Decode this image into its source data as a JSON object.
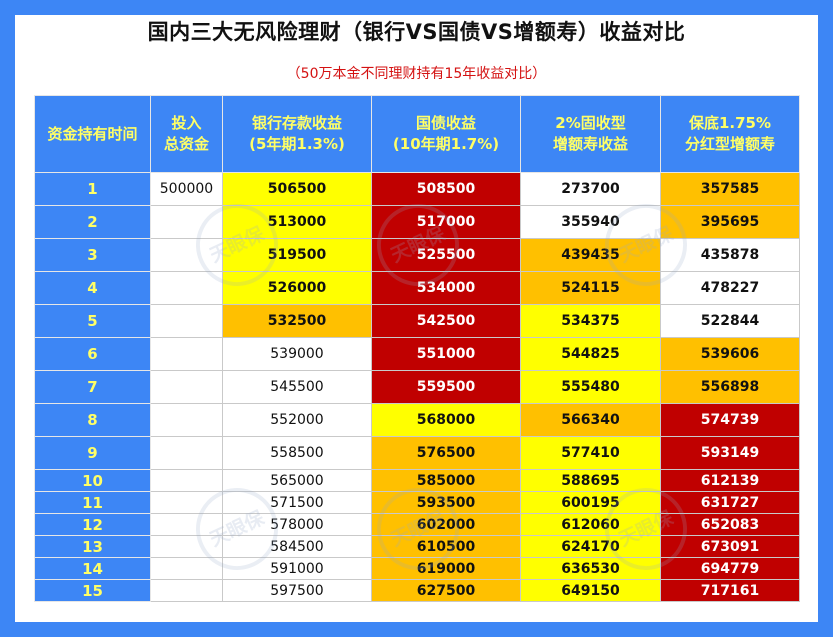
{
  "title": "国内三大无风险理财（银行VS国债VS增额寿）收益对比",
  "subtitle": "（50万本金不同理财持有15年收益对比）",
  "watermark_text": "天眼保",
  "headers": [
    {
      "line1": "资金持有时间",
      "line2": ""
    },
    {
      "line1": "投入",
      "line2": "总资金"
    },
    {
      "line1": "银行存款收益",
      "line2": "(5年期1.3%)"
    },
    {
      "line1": "国债收益",
      "line2": "(10年期1.7%)"
    },
    {
      "line1": "2%固收型",
      "line2": "增额寿收益"
    },
    {
      "line1": "保底1.75%",
      "line2": "分红型增额寿"
    }
  ],
  "colors": {
    "frame": "#3d86f5",
    "header_bg": "#3d86f5",
    "header_text": "#ffff66",
    "yellow": "#ffff00",
    "orange": "#ffc000",
    "red": "#c00000",
    "subtitle": "#d41212"
  },
  "rows": [
    {
      "year": "1",
      "invested": "500000",
      "bank": "506500",
      "bond": "508500",
      "fixed": "273700",
      "dividend": "357585"
    },
    {
      "year": "2",
      "invested": "",
      "bank": "513000",
      "bond": "517000",
      "fixed": "355940",
      "dividend": "395695"
    },
    {
      "year": "3",
      "invested": "",
      "bank": "519500",
      "bond": "525500",
      "fixed": "439435",
      "dividend": "435878"
    },
    {
      "year": "4",
      "invested": "",
      "bank": "526000",
      "bond": "534000",
      "fixed": "524115",
      "dividend": "478227"
    },
    {
      "year": "5",
      "invested": "",
      "bank": "532500",
      "bond": "542500",
      "fixed": "534375",
      "dividend": "522844"
    },
    {
      "year": "6",
      "invested": "",
      "bank": "539000",
      "bond": "551000",
      "fixed": "544825",
      "dividend": "539606"
    },
    {
      "year": "7",
      "invested": "",
      "bank": "545500",
      "bond": "559500",
      "fixed": "555480",
      "dividend": "556898"
    },
    {
      "year": "8",
      "invested": "",
      "bank": "552000",
      "bond": "568000",
      "fixed": "566340",
      "dividend": "574739"
    },
    {
      "year": "9",
      "invested": "",
      "bank": "558500",
      "bond": "576500",
      "fixed": "577410",
      "dividend": "593149"
    },
    {
      "year": "10",
      "invested": "",
      "bank": "565000",
      "bond": "585000",
      "fixed": "588695",
      "dividend": "612139"
    },
    {
      "year": "11",
      "invested": "",
      "bank": "571500",
      "bond": "593500",
      "fixed": "600195",
      "dividend": "631727"
    },
    {
      "year": "12",
      "invested": "",
      "bank": "578000",
      "bond": "602000",
      "fixed": "612060",
      "dividend": "652083"
    },
    {
      "year": "13",
      "invested": "",
      "bank": "584500",
      "bond": "610500",
      "fixed": "624170",
      "dividend": "673091"
    },
    {
      "year": "14",
      "invested": "",
      "bank": "591000",
      "bond": "619000",
      "fixed": "636530",
      "dividend": "694779"
    },
    {
      "year": "15",
      "invested": "",
      "bank": "597500",
      "bond": "627500",
      "fixed": "649150",
      "dividend": "717161"
    }
  ]
}
